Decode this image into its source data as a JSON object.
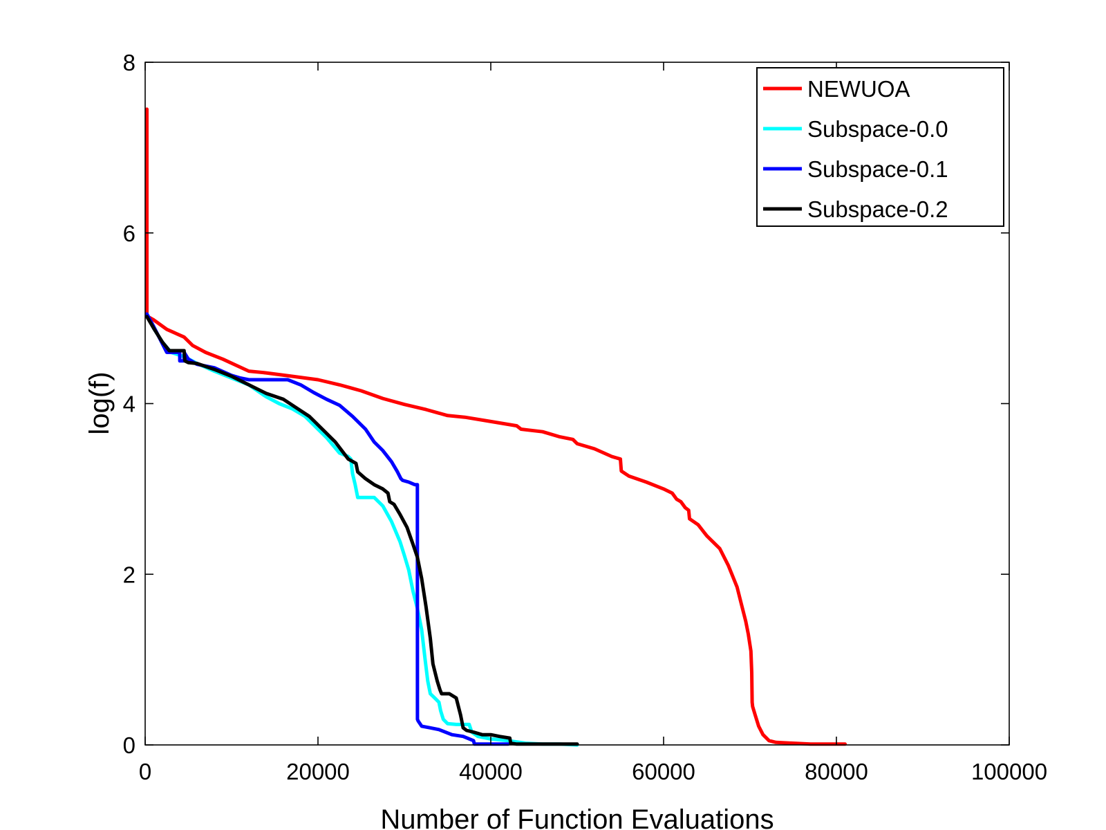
{
  "chart_data": {
    "type": "line",
    "title": "",
    "xlabel": "Number of Function Evaluations",
    "ylabel": "log(f)",
    "xlim": [
      0,
      100000
    ],
    "ylim": [
      0,
      8
    ],
    "xticks": [
      0,
      20000,
      40000,
      60000,
      80000,
      100000
    ],
    "xtick_labels": [
      "0",
      "20000",
      "40000",
      "60000",
      "80000",
      "100000"
    ],
    "yticks": [
      0,
      2,
      4,
      6,
      8
    ],
    "ytick_labels": [
      "0",
      "2",
      "4",
      "6",
      "8"
    ],
    "grid": false,
    "legend_position": "top-right",
    "series": [
      {
        "name": "NEWUOA",
        "color": "#ff0000",
        "x": [
          200,
          200,
          300,
          1000,
          2500,
          4500,
          5500,
          7000,
          9000,
          10500,
          12000,
          14000,
          17000,
          20000,
          22500,
          25000,
          27500,
          30000,
          32500,
          35000,
          37000,
          40000,
          43000,
          43500,
          46000,
          48000,
          49500,
          50000,
          52000,
          54000,
          55000,
          55100,
          56000,
          58000,
          60000,
          61000,
          61500,
          62000,
          62500,
          62900,
          63000,
          64000,
          65000,
          66500,
          67500,
          68500,
          69000,
          69500,
          69800,
          70100,
          70200,
          70250,
          70300,
          70600,
          71000,
          71500,
          72200,
          73000,
          75000,
          77000,
          80000,
          81000
        ],
        "y": [
          7.45,
          5.05,
          5.02,
          4.98,
          4.87,
          4.78,
          4.68,
          4.6,
          4.52,
          4.45,
          4.38,
          4.36,
          4.32,
          4.28,
          4.22,
          4.15,
          4.06,
          3.99,
          3.93,
          3.86,
          3.84,
          3.79,
          3.74,
          3.7,
          3.67,
          3.61,
          3.58,
          3.53,
          3.47,
          3.38,
          3.35,
          3.21,
          3.15,
          3.08,
          3.0,
          2.95,
          2.88,
          2.85,
          2.78,
          2.75,
          2.65,
          2.58,
          2.45,
          2.3,
          2.1,
          1.85,
          1.65,
          1.45,
          1.3,
          1.1,
          0.85,
          0.5,
          0.45,
          0.35,
          0.22,
          0.12,
          0.05,
          0.03,
          0.02,
          0.01,
          0.01,
          0.01
        ]
      },
      {
        "name": "Subspace-0.0",
        "color": "#00ffff",
        "x": [
          200,
          1000,
          2000,
          3000,
          4500,
          6000,
          8000,
          10000,
          12000,
          14000,
          15500,
          17000,
          18500,
          19500,
          21000,
          22500,
          23500,
          23800,
          24000,
          24300,
          24600,
          25000,
          26000,
          26500,
          27500,
          28500,
          29500,
          30000,
          30500,
          31000,
          31500,
          32000,
          32400,
          32700,
          33000,
          33500,
          34000,
          34200,
          34500,
          35000,
          36000,
          37500,
          37800,
          38500,
          40000,
          42000,
          44000,
          46000,
          48000,
          50000
        ],
        "y": [
          5.05,
          4.88,
          4.72,
          4.6,
          4.55,
          4.47,
          4.38,
          4.3,
          4.22,
          4.08,
          4.0,
          3.94,
          3.85,
          3.75,
          3.6,
          3.42,
          3.38,
          3.35,
          3.18,
          3.05,
          2.9,
          2.9,
          2.9,
          2.9,
          2.8,
          2.62,
          2.38,
          2.22,
          2.05,
          1.8,
          1.6,
          1.35,
          1.0,
          0.75,
          0.6,
          0.55,
          0.5,
          0.4,
          0.3,
          0.25,
          0.24,
          0.24,
          0.15,
          0.1,
          0.07,
          0.05,
          0.02,
          0.01,
          0.01,
          0.0
        ]
      },
      {
        "name": "Subspace-0.1",
        "color": "#0000ff",
        "x": [
          200,
          1000,
          2000,
          2500,
          2800,
          4000,
          4010,
          4500,
          4510,
          5000,
          6000,
          8000,
          10000,
          11000,
          12000,
          16500,
          18000,
          19500,
          21000,
          22500,
          24000,
          25500,
          26500,
          27500,
          28500,
          29200,
          29600,
          29800,
          30500,
          31200,
          31500,
          31510,
          31600,
          32000,
          33000,
          34000,
          35500,
          36800,
          38000,
          38100,
          40000,
          42000
        ],
        "y": [
          5.05,
          4.9,
          4.7,
          4.6,
          4.6,
          4.6,
          4.5,
          4.5,
          4.6,
          4.52,
          4.46,
          4.42,
          4.33,
          4.3,
          4.28,
          4.28,
          4.22,
          4.13,
          4.05,
          3.98,
          3.85,
          3.7,
          3.55,
          3.45,
          3.32,
          3.2,
          3.12,
          3.1,
          3.08,
          3.05,
          3.05,
          0.3,
          0.28,
          0.22,
          0.2,
          0.18,
          0.12,
          0.1,
          0.05,
          0.01,
          0.01,
          0.01
        ]
      },
      {
        "name": "Subspace-0.2",
        "color": "#000000",
        "x": [
          200,
          1000,
          2000,
          2800,
          4000,
          4500,
          4600,
          5000,
          6000,
          8000,
          10000,
          12000,
          14000,
          16000,
          17500,
          19000,
          20500,
          22000,
          23500,
          24400,
          24600,
          25500,
          26500,
          27500,
          28100,
          28300,
          28800,
          29500,
          30300,
          31000,
          31500,
          32000,
          32500,
          33000,
          33300,
          33800,
          34100,
          34300,
          34600,
          35200,
          36000,
          36500,
          36800,
          37200,
          38000,
          39000,
          40000,
          41000,
          42200,
          42300,
          43000,
          45000,
          48000,
          50000
        ],
        "y": [
          5.02,
          4.88,
          4.72,
          4.62,
          4.62,
          4.62,
          4.5,
          4.48,
          4.47,
          4.4,
          4.32,
          4.22,
          4.12,
          4.05,
          3.95,
          3.85,
          3.7,
          3.55,
          3.35,
          3.3,
          3.2,
          3.12,
          3.05,
          3.0,
          2.95,
          2.85,
          2.82,
          2.7,
          2.55,
          2.35,
          2.2,
          1.95,
          1.62,
          1.25,
          0.95,
          0.75,
          0.65,
          0.6,
          0.6,
          0.6,
          0.55,
          0.35,
          0.2,
          0.17,
          0.15,
          0.12,
          0.12,
          0.1,
          0.08,
          0.02,
          0.01,
          0.01,
          0.01,
          0.01
        ]
      }
    ]
  }
}
